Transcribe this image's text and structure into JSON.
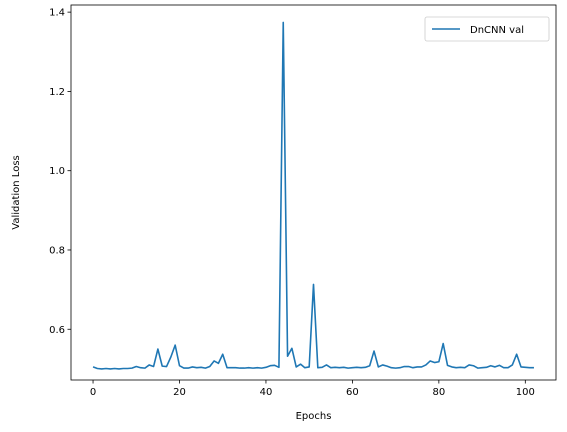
{
  "chart_data": {
    "type": "line",
    "title": "",
    "xlabel": "Epochs",
    "ylabel": "Validation Loss",
    "xlim": [
      -5.1,
      107.1
    ],
    "ylim": [
      0.472,
      1.418
    ],
    "xticks": [
      0,
      20,
      40,
      60,
      80,
      100
    ],
    "yticks": [
      0.6,
      0.8,
      1.0,
      1.2,
      1.4
    ],
    "ytick_labels": [
      "0.6",
      "0.8",
      "1.0",
      "1.2",
      "1.4"
    ],
    "grid": false,
    "legend_position": "top-right",
    "series": [
      {
        "name": "DnCNN val",
        "color": "#1f77b4",
        "x": [
          0,
          1,
          2,
          3,
          4,
          5,
          6,
          7,
          8,
          9,
          10,
          11,
          12,
          13,
          14,
          15,
          16,
          17,
          18,
          19,
          20,
          21,
          22,
          23,
          24,
          25,
          26,
          27,
          28,
          29,
          30,
          31,
          32,
          33,
          34,
          35,
          36,
          37,
          38,
          39,
          40,
          41,
          42,
          43,
          44,
          45,
          46,
          47,
          48,
          49,
          50,
          51,
          52,
          53,
          54,
          55,
          56,
          57,
          58,
          59,
          60,
          61,
          62,
          63,
          64,
          65,
          66,
          67,
          68,
          69,
          70,
          71,
          72,
          73,
          74,
          75,
          76,
          77,
          78,
          79,
          80,
          81,
          82,
          83,
          84,
          85,
          86,
          87,
          88,
          89,
          90,
          91,
          92,
          93,
          94,
          95,
          96,
          97,
          98,
          99,
          100,
          101,
          102
        ],
        "values": [
          0.505,
          0.501,
          0.5,
          0.501,
          0.5,
          0.501,
          0.5,
          0.501,
          0.501,
          0.502,
          0.506,
          0.503,
          0.502,
          0.51,
          0.506,
          0.55,
          0.507,
          0.506,
          0.53,
          0.56,
          0.508,
          0.502,
          0.502,
          0.505,
          0.503,
          0.504,
          0.502,
          0.506,
          0.52,
          0.514,
          0.537,
          0.503,
          0.503,
          0.503,
          0.502,
          0.502,
          0.503,
          0.502,
          0.503,
          0.502,
          0.504,
          0.508,
          0.509,
          0.504,
          1.374,
          0.532,
          0.552,
          0.505,
          0.512,
          0.503,
          0.505,
          0.713,
          0.503,
          0.504,
          0.51,
          0.503,
          0.504,
          0.503,
          0.504,
          0.502,
          0.503,
          0.504,
          0.503,
          0.504,
          0.508,
          0.545,
          0.505,
          0.51,
          0.507,
          0.503,
          0.502,
          0.503,
          0.506,
          0.506,
          0.503,
          0.505,
          0.505,
          0.51,
          0.52,
          0.516,
          0.518,
          0.564,
          0.509,
          0.505,
          0.503,
          0.504,
          0.503,
          0.51,
          0.508,
          0.502,
          0.503,
          0.504,
          0.508,
          0.505,
          0.509,
          0.503,
          0.503,
          0.51,
          0.537,
          0.505,
          0.504,
          0.503,
          0.503
        ]
      }
    ]
  }
}
